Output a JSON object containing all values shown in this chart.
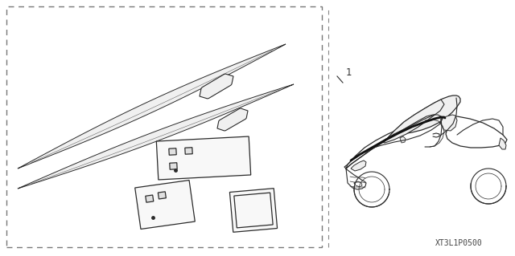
{
  "bg_color": "#ffffff",
  "line_color": "#2a2a2a",
  "text_color": "#333333",
  "figure_width": 6.4,
  "figure_height": 3.19,
  "dpi": 100,
  "watermark_text": "XT3L1P0500",
  "part_number": "1"
}
